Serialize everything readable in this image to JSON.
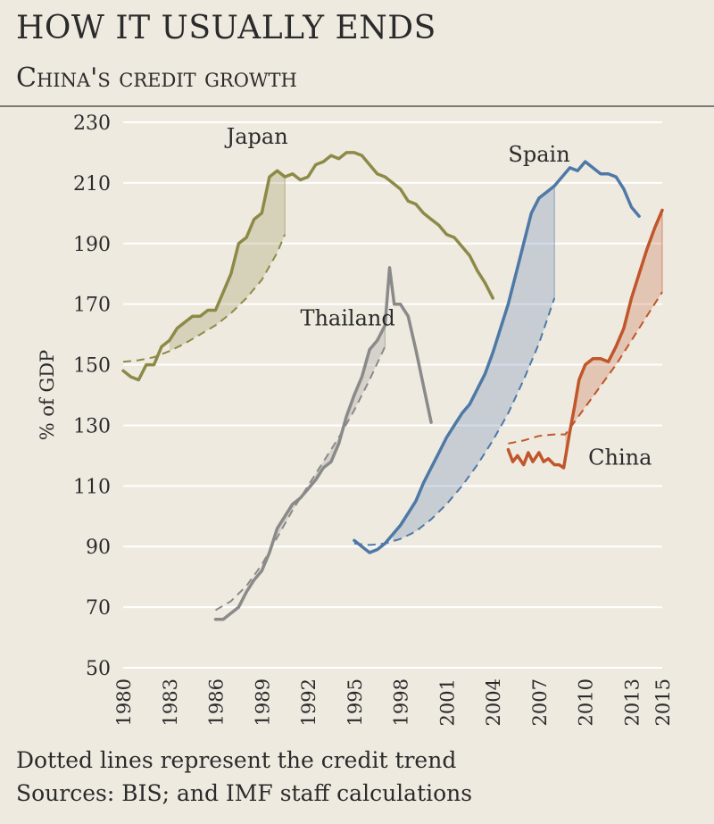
{
  "header": {
    "title": "HOW IT USUALLY ENDS",
    "subtitle": "China's credit growth"
  },
  "footer": {
    "note": "Dotted lines represent the credit trend",
    "sources": "Sources: BIS; and IMF staff calculations"
  },
  "colors": {
    "background": "#efeae0",
    "gridline": "#ffffff",
    "Japan": "#8d8a48",
    "Thailand": "#8a8a8a",
    "Spain": "#4e79a7",
    "China": "#c0562a"
  },
  "chart_data": {
    "type": "line",
    "title": "",
    "xlabel": "",
    "ylabel": "% of GDP",
    "xlim": [
      1980,
      2015
    ],
    "ylim": [
      50,
      230
    ],
    "yticks": [
      50,
      70,
      90,
      110,
      130,
      150,
      170,
      190,
      210,
      230
    ],
    "xticks": [
      "1980",
      "1983",
      "1986",
      "1989",
      "1992",
      "1995",
      "1998",
      "2001",
      "2004",
      "2007",
      "2010",
      "2013",
      "2015"
    ],
    "grid": true,
    "legend": "direct labels",
    "series": [
      {
        "name": "Japan",
        "x": [
          1980,
          1980.5,
          1981,
          1981.5,
          1982,
          1982.5,
          1983,
          1983.5,
          1984,
          1984.5,
          1985,
          1985.5,
          1986,
          1986.5,
          1987,
          1987.5,
          1988,
          1988.5,
          1989,
          1989.5,
          1990,
          1990.5,
          1991,
          1991.5,
          1992,
          1992.5,
          1993,
          1993.5,
          1994,
          1994.5,
          1995,
          1995.5,
          1996,
          1996.5,
          1997,
          1997.5,
          1998,
          1998.5,
          1999,
          1999.5,
          2000,
          2000.5,
          2001,
          2001.5,
          2002,
          2002.5,
          2003,
          2003.5,
          2004
        ],
        "y": [
          148,
          146,
          145,
          150,
          150,
          156,
          158,
          162,
          164,
          166,
          166,
          168,
          168,
          174,
          180,
          190,
          192,
          198,
          200,
          212,
          214,
          212,
          213,
          211,
          212,
          216,
          217,
          219,
          218,
          220,
          220,
          219,
          216,
          213,
          212,
          210,
          208,
          204,
          203,
          200,
          198,
          196,
          193,
          192,
          189,
          186,
          181,
          177,
          172
        ]
      },
      {
        "name": "Japan trend",
        "x": [
          1980,
          1981,
          1982,
          1983,
          1984,
          1985,
          1986,
          1987,
          1988,
          1989,
          1990,
          1990.5
        ],
        "y": [
          151,
          151.5,
          152.5,
          154.5,
          157,
          160,
          163,
          167,
          172,
          178,
          187,
          193
        ]
      },
      {
        "name": "Thailand",
        "x": [
          1986,
          1986.5,
          1987,
          1987.5,
          1988,
          1988.5,
          1989,
          1989.5,
          1990,
          1990.5,
          1991,
          1991.5,
          1992,
          1992.5,
          1993,
          1993.5,
          1994,
          1994.5,
          1995,
          1995.5,
          1996,
          1996.5,
          1997,
          1997.3,
          1997.6,
          1998,
          1998.5,
          1999,
          1999.5,
          2000
        ],
        "y": [
          66,
          66,
          68,
          70,
          75,
          79,
          82,
          88,
          96,
          100,
          104,
          106,
          109,
          112,
          116,
          118,
          124,
          133,
          140,
          146,
          155,
          158,
          163,
          182,
          170,
          170,
          166,
          155,
          143,
          131
        ]
      },
      {
        "name": "Thailand trend",
        "x": [
          1986,
          1987,
          1988,
          1989,
          1990,
          1991,
          1992,
          1993,
          1994,
          1995,
          1996,
          1997
        ],
        "y": [
          69,
          72,
          77,
          84,
          93,
          102,
          110,
          118,
          126,
          135,
          145,
          156
        ]
      },
      {
        "name": "Spain",
        "x": [
          1995,
          1995.5,
          1996,
          1996.5,
          1997,
          1997.5,
          1998,
          1998.5,
          1999,
          1999.5,
          2000,
          2000.5,
          2001,
          2001.5,
          2002,
          2002.5,
          2003,
          2003.5,
          2004,
          2004.5,
          2005,
          2005.5,
          2006,
          2006.5,
          2007,
          2007.5,
          2008,
          2008.5,
          2009,
          2009.5,
          2010,
          2010.5,
          2011,
          2011.5,
          2012,
          2012.5,
          2013,
          2013.5
        ],
        "y": [
          92,
          90,
          88,
          89,
          91,
          94,
          97,
          101,
          105,
          111,
          116,
          121,
          126,
          130,
          134,
          137,
          142,
          147,
          154,
          162,
          170,
          180,
          190,
          200,
          205,
          207,
          209,
          212,
          215,
          214,
          217,
          215,
          213,
          213,
          212,
          208,
          202,
          199
        ]
      },
      {
        "name": "Spain trend",
        "x": [
          1995,
          1996,
          1997,
          1998,
          1999,
          2000,
          2001,
          2002,
          2003,
          2004,
          2005,
          2006,
          2007,
          2008
        ],
        "y": [
          91,
          90.5,
          91,
          92.5,
          95,
          99,
          104,
          110,
          117,
          125,
          134,
          145,
          157,
          172
        ]
      },
      {
        "name": "China",
        "x": [
          2005,
          2005.3,
          2005.6,
          2006,
          2006.3,
          2006.6,
          2007,
          2007.3,
          2007.6,
          2008,
          2008.3,
          2008.6,
          2009,
          2009.3,
          2009.6,
          2010,
          2010.5,
          2011,
          2011.5,
          2012,
          2012.5,
          2013,
          2013.5,
          2014,
          2014.5,
          2015
        ],
        "y": [
          122,
          118,
          120,
          117,
          121,
          118,
          121,
          118,
          119,
          117,
          117,
          116,
          128,
          136,
          145,
          150,
          152,
          152,
          151,
          156,
          162,
          172,
          180,
          188,
          195,
          201
        ]
      },
      {
        "name": "China trend",
        "x": [
          2005,
          2006,
          2007,
          2008,
          2008.7,
          2009,
          2010,
          2011,
          2012,
          2013,
          2014,
          2015
        ],
        "y": [
          124,
          125,
          126.5,
          127,
          127,
          129,
          136,
          143,
          150,
          158,
          166,
          174
        ]
      }
    ],
    "annotations": [
      "Japan",
      "Thailand",
      "Spain",
      "China"
    ]
  }
}
